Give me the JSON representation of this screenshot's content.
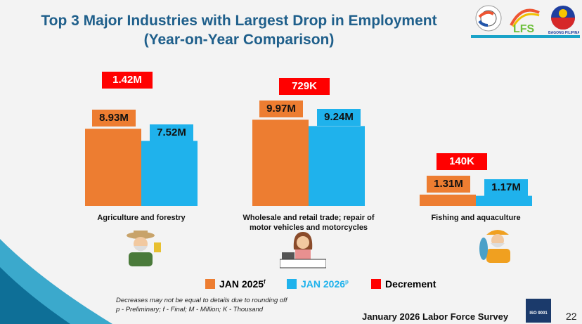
{
  "title": "Top 3 Major Industries with Largest Drop in Employment",
  "subtitle": "(Year-on-Year Comparison)",
  "chart_data": {
    "type": "bar",
    "title": "Top 3 Major Industries with Largest Drop in Employment",
    "subtitle": "(Year-on-Year Comparison)",
    "categories": [
      "Agriculture and forestry",
      "Wholesale and retail trade; repair of motor vehicles and motorcycles",
      "Fishing and aquaculture"
    ],
    "category_lines": [
      [
        "Agriculture and forestry"
      ],
      [
        "Wholesale and retail trade; repair of",
        "motor vehicles and motorcycles"
      ],
      [
        "Fishing and aquaculture"
      ]
    ],
    "series": [
      {
        "name": "JAN 2025",
        "superscript": "f",
        "values": [
          8.93,
          9.97,
          1.31
        ],
        "labels": [
          "8.93M",
          "9.97M",
          "1.31M"
        ],
        "color": "#ED7D31"
      },
      {
        "name": "JAN 2026",
        "superscript": "p",
        "values": [
          7.52,
          9.24,
          1.17
        ],
        "labels": [
          "7.52M",
          "9.24M",
          "1.17M"
        ],
        "color": "#1FB2EC"
      }
    ],
    "decrement": {
      "name": "Decrement",
      "labels": [
        "1.42M",
        "729K",
        "140K"
      ],
      "color": "#FF0000"
    },
    "unit": "Million",
    "legend_position": "bottom",
    "grid": false
  },
  "notes": [
    "Decreases may not be equal to details due to rounding off",
    "p - Preliminary; f - Final; M - Million; K - Thousand"
  ],
  "footer": "January 2026 Labor Force Survey",
  "page_number": "22",
  "logos": [
    "PSA logo",
    "LFS logo",
    "BAGONG PILIPINAS"
  ],
  "iso_badge": "ISO 9001"
}
